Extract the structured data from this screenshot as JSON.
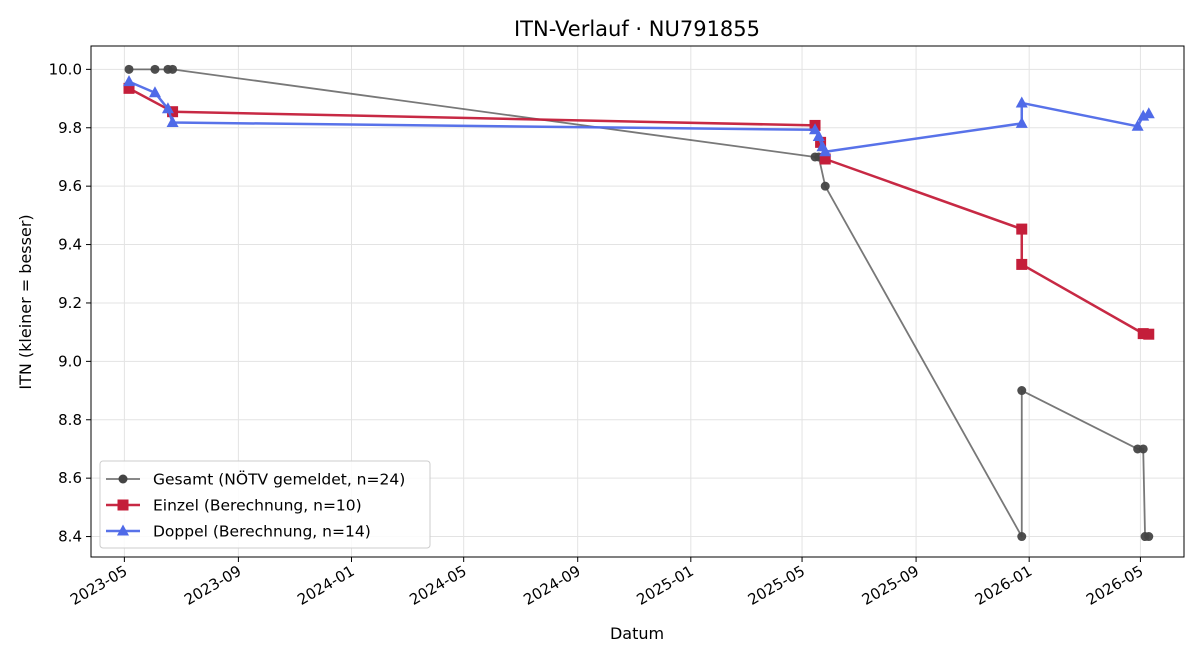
{
  "chart_data": {
    "type": "line",
    "title": "ITN-Verlauf · NU791855",
    "xlabel": "Datum",
    "ylabel": "ITN  (kleiner = besser)",
    "x_ticks": [
      "2023-05",
      "2023-09",
      "2024-01",
      "2024-05",
      "2024-09",
      "2025-01",
      "2025-05",
      "2025-09",
      "2026-01",
      "2026-05"
    ],
    "y_ticks": [
      "8.4",
      "8.6",
      "8.8",
      "9.0",
      "9.2",
      "9.4",
      "9.6",
      "9.8",
      "10.0"
    ],
    "xlim": [
      "2023-03-26",
      "2026-06-17"
    ],
    "ylim": [
      8.33,
      10.08
    ],
    "grid": true,
    "legend_position": "lower-left",
    "series": [
      {
        "name": "Gesamt (NÖTV gemeldet, n=24)",
        "color": "#444444",
        "marker": "circle",
        "points": [
          [
            "2023-05-06",
            10.0
          ],
          [
            "2023-06-03",
            10.0
          ],
          [
            "2023-06-17",
            10.0
          ],
          [
            "2023-06-22",
            10.0
          ],
          [
            "2025-05-15",
            9.7
          ],
          [
            "2025-05-19",
            9.7
          ],
          [
            "2025-05-26",
            9.6
          ],
          [
            "2025-12-24",
            8.4
          ],
          [
            "2025-12-24",
            8.9
          ],
          [
            "2026-04-28",
            8.7
          ],
          [
            "2026-05-04",
            8.7
          ],
          [
            "2026-05-06",
            8.4
          ],
          [
            "2026-05-10",
            8.4
          ]
        ]
      },
      {
        "name": "Einzel (Berechnung, n=10)",
        "color": "#c41e3a",
        "marker": "square",
        "points": [
          [
            "2023-05-06",
            9.935
          ],
          [
            "2023-06-22",
            9.855
          ],
          [
            "2025-05-15",
            9.808
          ],
          [
            "2025-05-21",
            9.75
          ],
          [
            "2025-05-26",
            9.693
          ],
          [
            "2025-12-24",
            9.453
          ],
          [
            "2025-12-24",
            9.332
          ],
          [
            "2026-05-04",
            9.095
          ],
          [
            "2026-05-10",
            9.093
          ]
        ]
      },
      {
        "name": "Doppel (Berechnung, n=14)",
        "color": "#4f6ae8",
        "marker": "triangle",
        "points": [
          [
            "2023-05-06",
            9.958
          ],
          [
            "2023-06-03",
            9.92
          ],
          [
            "2023-06-17",
            9.865
          ],
          [
            "2023-06-22",
            9.818
          ],
          [
            "2025-05-15",
            9.793
          ],
          [
            "2025-05-19",
            9.77
          ],
          [
            "2025-05-23",
            9.735
          ],
          [
            "2025-05-26",
            9.718
          ],
          [
            "2025-12-24",
            9.815
          ],
          [
            "2025-12-24",
            9.885
          ],
          [
            "2026-04-28",
            9.805
          ],
          [
            "2026-05-04",
            9.84
          ],
          [
            "2026-05-10",
            9.848
          ]
        ]
      }
    ]
  }
}
